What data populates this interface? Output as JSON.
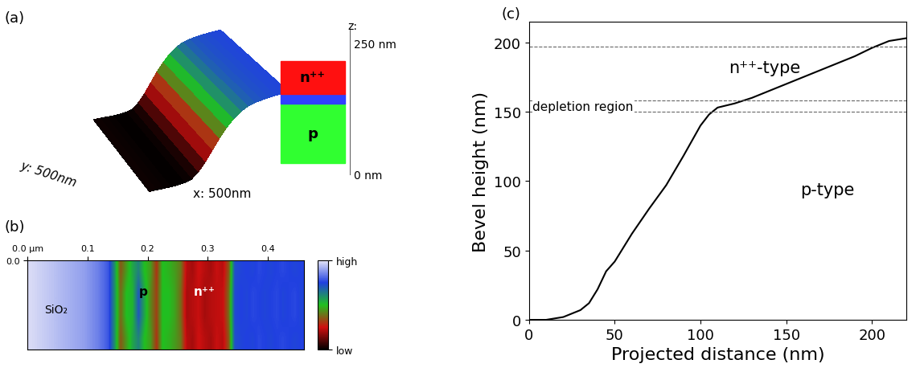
{
  "chart_data": [
    {
      "type": "surface",
      "panel_label": "(a)",
      "x": [
        0,
        25,
        50,
        75,
        100,
        125,
        150,
        175,
        200,
        225,
        250,
        275,
        300,
        325,
        350,
        375,
        400,
        425,
        450,
        475,
        500
      ],
      "values": [
        5,
        4,
        3,
        2,
        2,
        4,
        10,
        30,
        60,
        95,
        130,
        160,
        185,
        203,
        215,
        222,
        225,
        228,
        230,
        231,
        232
      ],
      "y": [
        0,
        500
      ],
      "xlim": [
        0,
        500
      ],
      "ylim": [
        0,
        500
      ],
      "zlim": [
        0,
        250
      ],
      "axis_texts": {
        "x": "x: 500nm",
        "y": "y: 500nm",
        "z": "z:",
        "z_top": "250 nm",
        "z_bottom": "0 nm"
      },
      "inset_labels": [
        "n⁺⁺",
        "p"
      ]
    },
    {
      "type": "heatmap",
      "panel_label": "(b)",
      "cells": [
        [
          0.98,
          0.97,
          0.96,
          0.95,
          0.94,
          0.93,
          0.92,
          0.91,
          0.9,
          0.89,
          0.87,
          0.85,
          0.82,
          0.78,
          0.6,
          0.35,
          0.45,
          0.55,
          0.62,
          0.5,
          0.45,
          0.3,
          0.5,
          0.48,
          0.45,
          0.4,
          0.22,
          0.2,
          0.25,
          0.22,
          0.2,
          0.24,
          0.22,
          0.35,
          0.72,
          0.74,
          0.75,
          0.74,
          0.76,
          0.75,
          0.74,
          0.75,
          0.76,
          0.75,
          0.74,
          0.75
        ],
        [
          0.98,
          0.97,
          0.96,
          0.95,
          0.94,
          0.93,
          0.92,
          0.91,
          0.9,
          0.89,
          0.87,
          0.85,
          0.82,
          0.78,
          0.6,
          0.38,
          0.5,
          0.52,
          0.7,
          0.55,
          0.42,
          0.32,
          0.5,
          0.5,
          0.46,
          0.38,
          0.2,
          0.22,
          0.24,
          0.2,
          0.22,
          0.23,
          0.24,
          0.38,
          0.73,
          0.75,
          0.74,
          0.76,
          0.75,
          0.74,
          0.75,
          0.76,
          0.74,
          0.75,
          0.76,
          0.74
        ],
        [
          0.98,
          0.97,
          0.96,
          0.95,
          0.94,
          0.93,
          0.92,
          0.91,
          0.9,
          0.89,
          0.87,
          0.85,
          0.82,
          0.78,
          0.6,
          0.38,
          0.5,
          0.52,
          0.7,
          0.55,
          0.42,
          0.32,
          0.5,
          0.5,
          0.46,
          0.38,
          0.2,
          0.22,
          0.24,
          0.2,
          0.22,
          0.23,
          0.24,
          0.38,
          0.73,
          0.75,
          0.74,
          0.76,
          0.75,
          0.74,
          0.75,
          0.76,
          0.74,
          0.75,
          0.76,
          0.74
        ],
        [
          0.98,
          0.97,
          0.96,
          0.95,
          0.94,
          0.93,
          0.92,
          0.91,
          0.9,
          0.89,
          0.87,
          0.85,
          0.82,
          0.78,
          0.6,
          0.35,
          0.45,
          0.55,
          0.62,
          0.5,
          0.45,
          0.3,
          0.5,
          0.48,
          0.45,
          0.4,
          0.22,
          0.2,
          0.25,
          0.22,
          0.2,
          0.24,
          0.22,
          0.35,
          0.72,
          0.74,
          0.75,
          0.74,
          0.76,
          0.75,
          0.74,
          0.75,
          0.76,
          0.75,
          0.74,
          0.75
        ]
      ],
      "xlim": [
        0,
        0.46
      ],
      "ylim": [
        0.1,
        0
      ],
      "xticks": [
        {
          "value": 0,
          "label": "0.0 µm"
        },
        0.1,
        0.2,
        0.3,
        0.4
      ],
      "yticks": [
        {
          "value": 0,
          "label": "0.0"
        }
      ],
      "color_range": [
        0,
        1
      ],
      "color_ticks": [
        {
          "value": 1,
          "label": "high"
        },
        {
          "value": 0,
          "label": "low"
        }
      ],
      "region_labels": [
        "SiO₂",
        "p",
        "n⁺⁺"
      ]
    },
    {
      "type": "line",
      "panel_label": "(c)",
      "x": [
        0,
        10,
        20,
        30,
        35,
        40,
        45,
        50,
        60,
        70,
        80,
        90,
        100,
        105,
        110,
        120,
        130,
        150,
        170,
        190,
        200,
        210,
        220
      ],
      "values": [
        0,
        0,
        2,
        7,
        12,
        22,
        35,
        42,
        62,
        80,
        97,
        118,
        140,
        148,
        153,
        156,
        160,
        170,
        180,
        190,
        196,
        201,
        203
      ],
      "color": "#000000",
      "xlim": [
        0,
        220
      ],
      "ylim": [
        0,
        215
      ],
      "xticks": [
        0,
        50,
        100,
        150,
        200
      ],
      "yticks": [
        0,
        50,
        100,
        150,
        200
      ],
      "x_label": "Projected distance (nm)",
      "y_label": "Bevel height (nm)",
      "reference_lines": [
        197,
        158,
        150
      ],
      "region_labels": [
        "n⁺⁺-type",
        "depletion region",
        "p-type"
      ]
    }
  ]
}
